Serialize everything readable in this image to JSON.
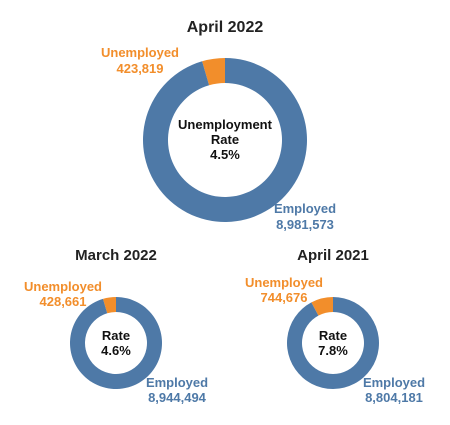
{
  "chart_data": [
    {
      "type": "pie",
      "variant": "donut",
      "title": "April 2022",
      "center_lines": [
        "Unemployment",
        "Rate",
        "4.5%"
      ],
      "categories": [
        "Unemployed",
        "Employed"
      ],
      "values": [
        423819,
        8981573
      ],
      "value_labels": [
        "423,819",
        "8,981,573"
      ],
      "colors": [
        "#f28e2b",
        "#4e79a7"
      ]
    },
    {
      "type": "pie",
      "variant": "donut",
      "title": "March 2022",
      "center_lines": [
        "Rate",
        "4.6%"
      ],
      "categories": [
        "Unemployed",
        "Employed"
      ],
      "values": [
        428661,
        8944494
      ],
      "value_labels": [
        "428,661",
        "8,944,494"
      ],
      "colors": [
        "#f28e2b",
        "#4e79a7"
      ]
    },
    {
      "type": "pie",
      "variant": "donut",
      "title": "April 2021",
      "center_lines": [
        "Rate",
        "7.8%"
      ],
      "categories": [
        "Unemployed",
        "Employed"
      ],
      "values": [
        744676,
        8804181
      ],
      "value_labels": [
        "744,676",
        "8,804,181"
      ],
      "colors": [
        "#f28e2b",
        "#4e79a7"
      ]
    }
  ]
}
